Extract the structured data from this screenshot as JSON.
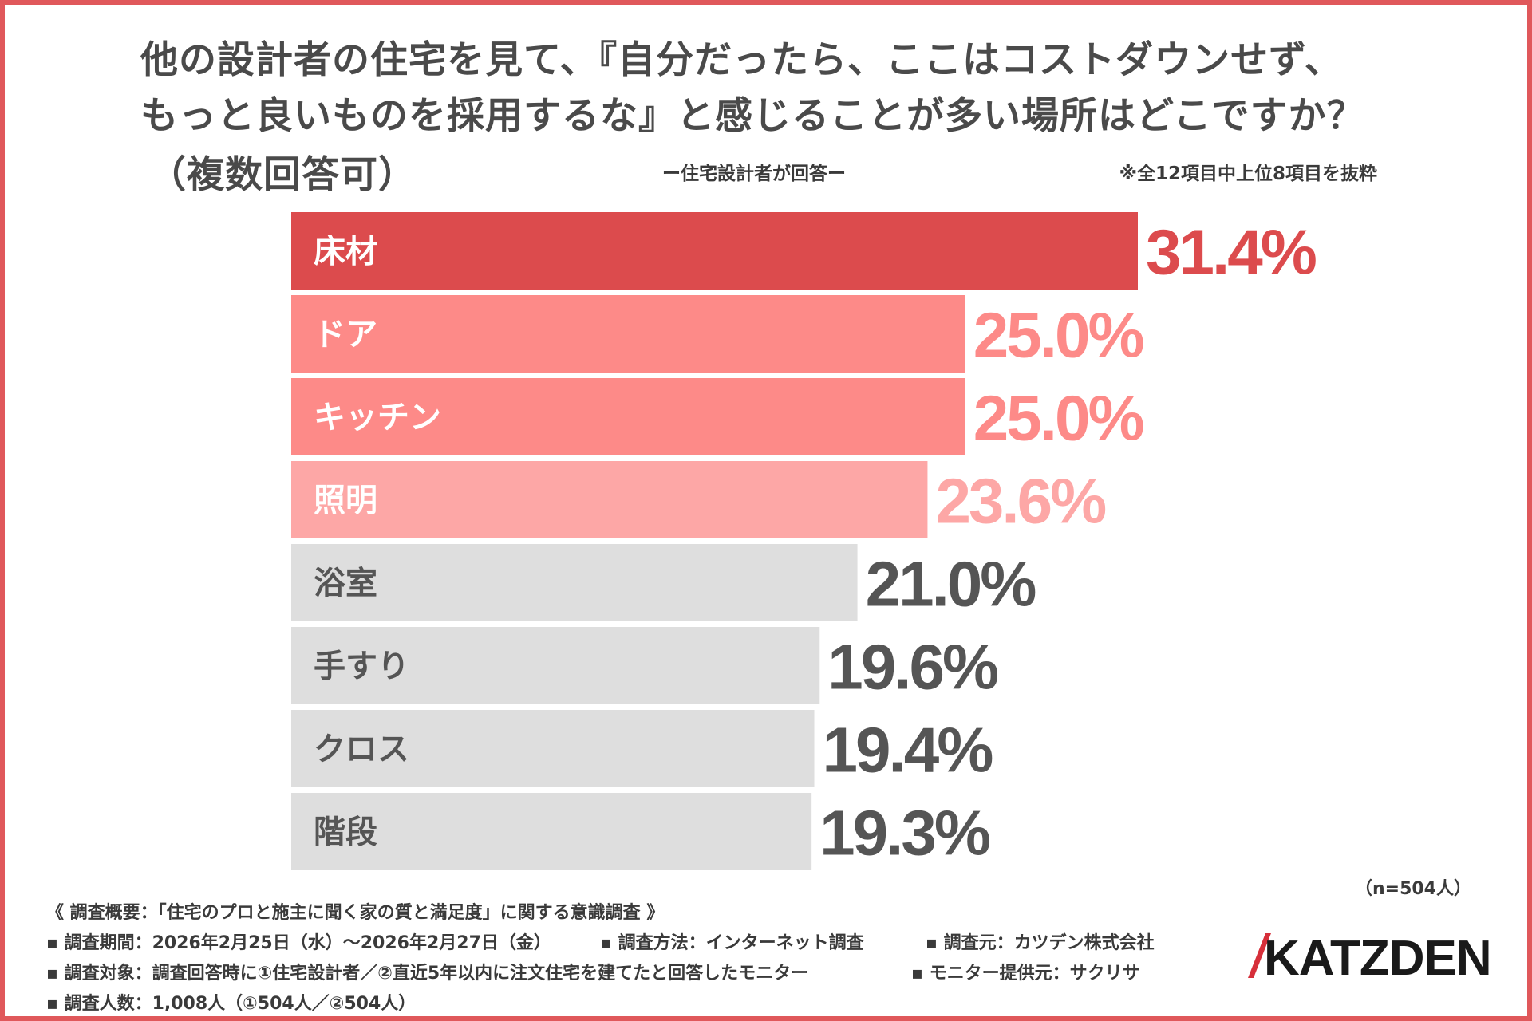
{
  "title": {
    "line1": "他の設計者の住宅を見て、『自分だったら、ここはコストダウンせず、",
    "line2": "もっと良いものを採用するな』と感じることが多い場所はどこですか？",
    "line3": "（複数回答可）"
  },
  "subtitle": "ー住宅設計者が回答ー",
  "note": "※全12項目中上位8項目を抜粋",
  "sample_size": "（n=504人）",
  "colors": {
    "highlight": "#dc4b4d",
    "strong": "#fd8a88",
    "light": "#fda7a6",
    "neutral_bar": "#dedede",
    "neutral_text": "#555555",
    "border": "#e0585b"
  },
  "chart_data": {
    "type": "bar",
    "orientation": "horizontal",
    "title": "他の設計者の住宅を見て、『自分だったら、ここはコストダウンせず、もっと良いものを採用するな』と感じることが多い場所はどこですか？（複数回答可）",
    "xlabel": "",
    "ylabel": "",
    "unit": "%",
    "xlim": [
      0,
      31.4
    ],
    "grid": false,
    "legend": "none",
    "categories": [
      "床材",
      "ドア",
      "キッチン",
      "照明",
      "浴室",
      "手すり",
      "クロス",
      "階段"
    ],
    "values": [
      31.4,
      25.0,
      25.0,
      23.6,
      21.0,
      19.6,
      19.4,
      19.3
    ],
    "value_labels": [
      "31.4%",
      "25.0%",
      "25.0%",
      "23.6%",
      "21.0%",
      "19.6%",
      "19.4%",
      "19.3%"
    ],
    "bar_tones": [
      "highlight",
      "strong",
      "strong",
      "light",
      "neutral",
      "neutral",
      "neutral",
      "neutral"
    ]
  },
  "footer": {
    "heading": "《 調査概要：「住宅のプロと施主に聞く家の質と満足度」に関する意識調査 》",
    "period": "▪ 調査期間：2026年2月25日（水）〜2026年2月27日（金）",
    "method": "▪ 調査方法：インターネット調査",
    "organizer": "▪ 調査元：カツデン株式会社",
    "target": "▪ 調査対象：調査回答時に①住宅設計者／②直近5年以内に注文住宅を建てたと回答したモニター",
    "provider": "▪ モニター提供元：サクリサ",
    "count": "▪ 調査人数：1,008人（①504人／②504人）"
  },
  "logo": {
    "text": "KATZDEN",
    "text_color": "#1a1a1a",
    "accent_color": "#d62f3a",
    "icon": "katzden-logo"
  }
}
